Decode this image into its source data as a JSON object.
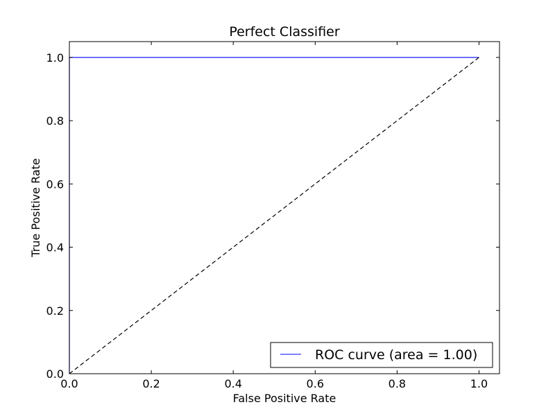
{
  "chart_data": {
    "type": "line",
    "title": "Perfect Classifier",
    "xlabel": "False Positive Rate",
    "ylabel": "True Positive Rate",
    "xlim": [
      0.0,
      1.05
    ],
    "ylim": [
      0.0,
      1.05
    ],
    "xticks": [
      "0.0",
      "0.2",
      "0.4",
      "0.6",
      "0.8",
      "1.0"
    ],
    "yticks": [
      "0.0",
      "0.2",
      "0.4",
      "0.6",
      "0.8",
      "1.0"
    ],
    "grid": false,
    "legend_position": "lower-right",
    "series": [
      {
        "name": "ROC curve (area = 1.00)",
        "color": "#0000ff",
        "style": "solid",
        "x": [
          0.0,
          0.0,
          1.0
        ],
        "y": [
          0.0,
          1.0,
          1.0
        ]
      },
      {
        "color": "#000000",
        "style": "dashed",
        "x": [
          0.0,
          1.0
        ],
        "y": [
          0.0,
          1.0
        ]
      }
    ]
  }
}
